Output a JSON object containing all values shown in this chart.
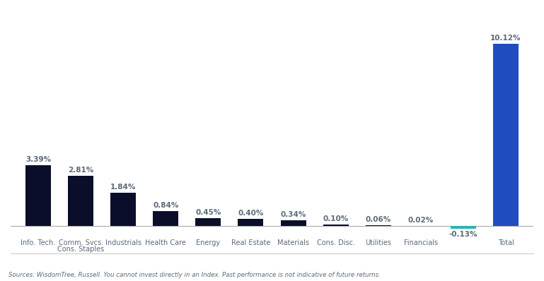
{
  "values": [
    3.39,
    2.81,
    1.84,
    0.84,
    0.45,
    0.4,
    0.34,
    0.1,
    0.06,
    0.02,
    -0.13,
    10.12
  ],
  "bar_colors": [
    "#0a0e2a",
    "#0a0e2a",
    "#0a0e2a",
    "#0a0e2a",
    "#0a0e2a",
    "#0a0e2a",
    "#0a0e2a",
    "#0a0e2a",
    "#0a0e2a",
    "#0a0e2a",
    "#2ab5b5",
    "#1f4dbf"
  ],
  "value_labels": [
    "3.39%",
    "2.81%",
    "1.84%",
    "0.84%",
    "0.45%",
    "0.40%",
    "0.34%",
    "0.10%",
    "0.06%",
    "0.02%",
    "-0.13%",
    "10.12%"
  ],
  "xlabel_row1": [
    "Info. Tech.",
    "Comm. Svcs.",
    "Industrials",
    "Health Care",
    "Energy",
    "Real Estate",
    "Materials",
    "Cons. Disc.",
    "Utilities",
    "Financials",
    "",
    "Total"
  ],
  "xlabel_row2": [
    "",
    "Cons. Staples",
    "",
    "",
    "",
    "",
    "",
    "",
    "",
    "",
    "",
    ""
  ],
  "footnote": "Sources: WisdomTree, Russell. You cannot invest directly in an Index. Past performance is not indicative of future returns.",
  "background_color": "#ffffff",
  "bar_width": 0.6,
  "ylim": [
    -1.5,
    11.5
  ],
  "label_color": "#5a6a7a",
  "title_color": "#1a3a6e",
  "footnote_color": "#5a6a7a"
}
